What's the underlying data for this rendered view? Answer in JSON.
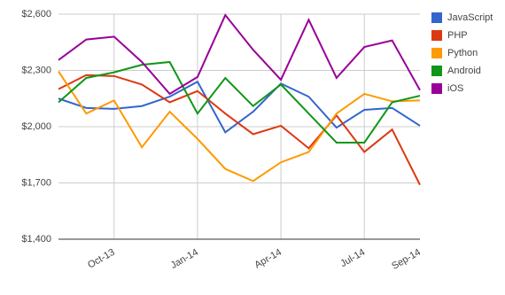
{
  "chart_data": {
    "type": "line",
    "categories": [
      null,
      null,
      "Oct-13",
      null,
      null,
      "Jan-14",
      null,
      null,
      "Apr-14",
      null,
      null,
      "Jul-14",
      null,
      "Sep-14"
    ],
    "series": [
      {
        "name": "JavaScript",
        "color": "#3366cc",
        "values": [
          2150,
          2100,
          2095,
          2110,
          2160,
          2240,
          1970,
          2080,
          2230,
          2160,
          1995,
          2090,
          2100,
          2005
        ]
      },
      {
        "name": "PHP",
        "color": "#dc3912",
        "values": [
          2200,
          2275,
          2270,
          2225,
          2130,
          2190,
          2070,
          1960,
          2005,
          1885,
          2060,
          1865,
          1985,
          1690
        ]
      },
      {
        "name": "Python",
        "color": "#ff9900",
        "values": [
          2295,
          2070,
          2140,
          1890,
          2080,
          1935,
          1775,
          1710,
          1810,
          1865,
          2070,
          2175,
          2135,
          2140
        ]
      },
      {
        "name": "Android",
        "color": "#109618",
        "values": [
          2130,
          2260,
          2290,
          2330,
          2345,
          2070,
          2260,
          2110,
          2225,
          2070,
          1915,
          1915,
          2130,
          2165
        ]
      },
      {
        "name": "iOS",
        "color": "#990099",
        "values": [
          2355,
          2465,
          2480,
          2345,
          2175,
          2265,
          2595,
          2410,
          2250,
          2570,
          2260,
          2425,
          2460,
          2195
        ]
      }
    ],
    "ylim": [
      1400,
      2600
    ],
    "yticks": [
      {
        "value": 1400,
        "label": "$1,400"
      },
      {
        "value": 1700,
        "label": "$1,700"
      },
      {
        "value": 2000,
        "label": "$2,000"
      },
      {
        "value": 2300,
        "label": "$2,300"
      },
      {
        "value": 2600,
        "label": "$2,600"
      }
    ],
    "grid": true,
    "legend": "right"
  }
}
